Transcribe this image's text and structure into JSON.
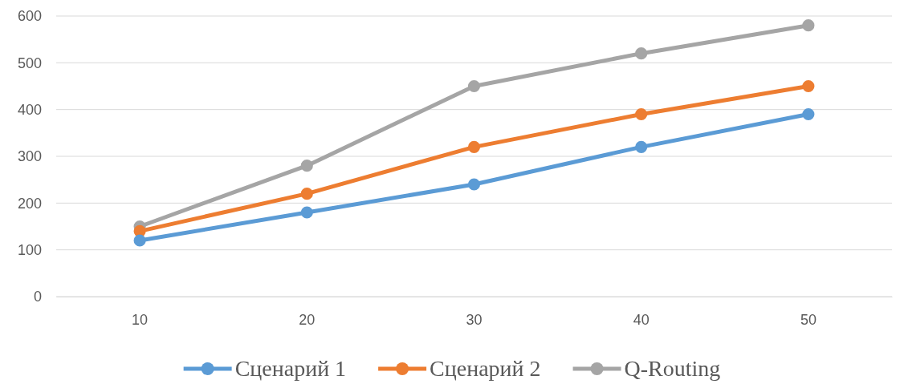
{
  "chart_data": {
    "type": "line",
    "categories": [
      "10",
      "20",
      "30",
      "40",
      "50"
    ],
    "series": [
      {
        "name": "Сценарий 1",
        "color": "#5b9bd5",
        "values": [
          120,
          180,
          240,
          320,
          390
        ]
      },
      {
        "name": "Сценарий 2",
        "color": "#ed7d31",
        "values": [
          140,
          220,
          320,
          390,
          450
        ]
      },
      {
        "name": "Q-Routing",
        "color": "#a5a5a5",
        "values": [
          150,
          280,
          450,
          520,
          580
        ]
      }
    ],
    "ylim": [
      0,
      600
    ],
    "yticks": [
      0,
      100,
      200,
      300,
      400,
      500,
      600
    ],
    "grid": "y",
    "legend": "bottom",
    "marker": "circle",
    "line_style": "solid"
  }
}
